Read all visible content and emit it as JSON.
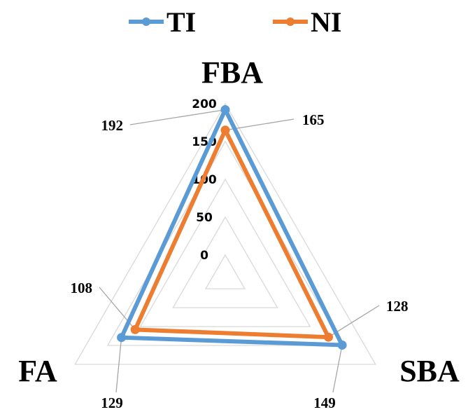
{
  "chart_data": {
    "type": "radar",
    "axes": [
      "FBA",
      "SBA",
      "FA"
    ],
    "series": [
      {
        "name": "TI",
        "color": "#5b9bd5",
        "values": [
          192,
          149,
          129
        ]
      },
      {
        "name": "NI",
        "color": "#ed7d31",
        "values": [
          165,
          128,
          108
        ]
      }
    ],
    "range": [
      0,
      200
    ],
    "ticks": [
      0,
      50,
      100,
      150,
      200
    ],
    "grid": true,
    "legend": "top"
  }
}
